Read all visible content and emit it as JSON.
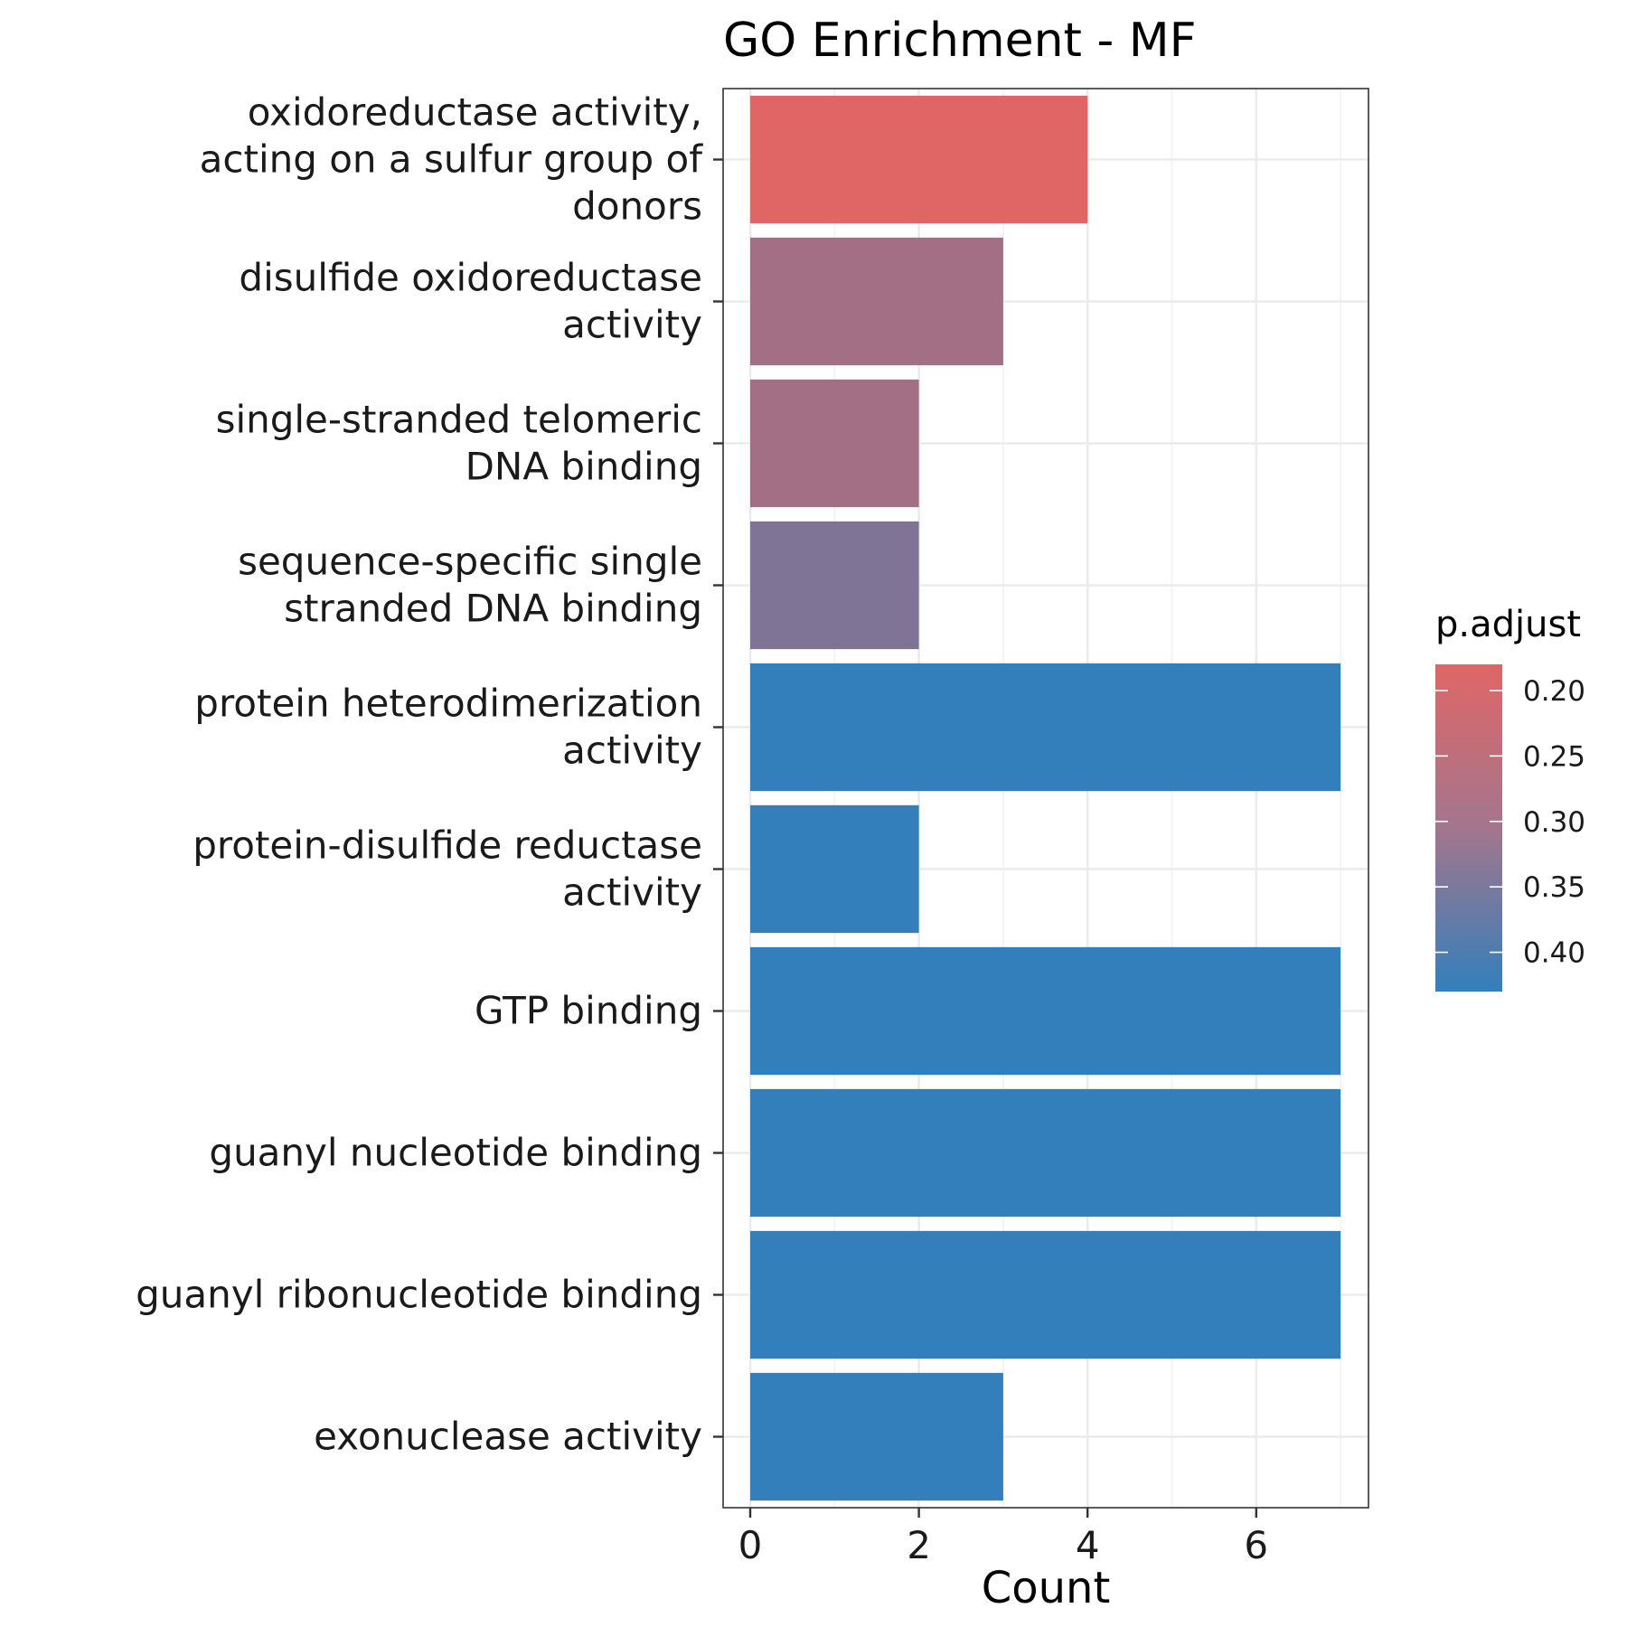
{
  "chart_data": {
    "type": "bar",
    "orientation": "horizontal",
    "title": "GO Enrichment - MF",
    "xlabel": "Count",
    "ylabel": "",
    "xlim": [
      0,
      7
    ],
    "x_ticks": [
      0,
      2,
      4,
      6
    ],
    "grid": true,
    "categories": [
      "oxidoreductase activity, acting on a sulfur group of donors",
      "disulfide oxidoreductase activity",
      "single-stranded telomeric DNA binding",
      "sequence-specific single stranded DNA binding",
      "protein heterodimerization activity",
      "protein-disulfide reductase activity",
      "GTP binding",
      "guanyl nucleotide binding",
      "guanyl ribonucleotide binding",
      "exonuclease activity"
    ],
    "category_lines": [
      [
        "oxidoreductase activity,",
        "acting on a sulfur group of",
        "donors"
      ],
      [
        "disulfide oxidoreductase",
        "activity"
      ],
      [
        "single-stranded telomeric",
        "DNA binding"
      ],
      [
        "sequence-specific single",
        "stranded DNA binding"
      ],
      [
        "protein heterodimerization",
        "activity"
      ],
      [
        "protein-disulfide reductase",
        "activity"
      ],
      [
        "GTP binding"
      ],
      [
        "guanyl nucleotide binding"
      ],
      [
        "guanyl ribonucleotide binding"
      ],
      [
        "exonuclease activity"
      ]
    ],
    "values": [
      4,
      3,
      2,
      2,
      7,
      2,
      7,
      7,
      7,
      3
    ],
    "p_adjust": [
      0.18,
      0.27,
      0.27,
      0.32,
      0.43,
      0.43,
      0.43,
      0.43,
      0.43,
      0.43
    ],
    "colorbar": {
      "title": "p.adjust",
      "range": [
        0.18,
        0.43
      ],
      "ticks": [
        0.2,
        0.25,
        0.3,
        0.35,
        0.4
      ],
      "tick_labels": [
        "0.20",
        "0.25",
        "0.30",
        "0.35",
        "0.40"
      ],
      "color_low": "#e06666",
      "color_high": "#337fbb"
    },
    "legend_position": "right"
  }
}
